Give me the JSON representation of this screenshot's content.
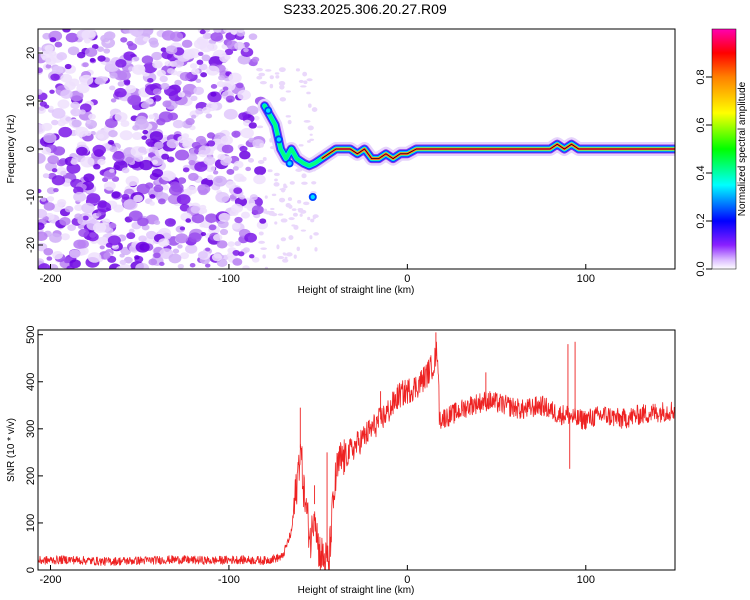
{
  "figure": {
    "title": "S233.2025.306.20.27.R09"
  },
  "chart_data": [
    {
      "type": "heatmap",
      "title": "S233.2025.306.20.27.R09",
      "xlabel": "Height of straight line (km)",
      "ylabel": "Frequency (Hz)",
      "xlim": [
        -207,
        150
      ],
      "ylim": [
        -25,
        25
      ],
      "x_ticks": [
        -200,
        -100,
        0,
        100
      ],
      "x_tick_labels": [
        "-200",
        "-100",
        "0",
        "100"
      ],
      "y_ticks": [
        -20,
        -10,
        0,
        10,
        20
      ],
      "y_tick_labels": [
        "-20",
        "-10",
        "0",
        "10",
        "20"
      ],
      "noise_region_x": [
        -207,
        -78
      ],
      "signal_trace": {
        "x": [
          -80,
          -77,
          -74,
          -71,
          -68,
          -65,
          -62,
          -58,
          -55,
          -52,
          -48,
          -44,
          -40,
          -36,
          -32,
          -28,
          -24,
          -20,
          -16,
          -12,
          -8,
          -4,
          0,
          5,
          10,
          15,
          20,
          25,
          30,
          40,
          50,
          60,
          70,
          80,
          84,
          88,
          92,
          96,
          100,
          110,
          120,
          130,
          140,
          150
        ],
        "y": [
          9,
          7,
          5,
          0,
          -2,
          0,
          -2,
          -3,
          -3.5,
          -3,
          -2,
          -1,
          0,
          0,
          0,
          -1,
          0,
          -2,
          -2,
          -1,
          -2,
          -1,
          -1,
          0,
          0,
          0,
          0,
          0,
          0,
          0,
          0,
          0,
          0,
          0,
          1,
          0,
          1,
          0,
          0,
          0,
          0,
          0,
          0,
          0
        ]
      },
      "colorbar": {
        "label": "Normalized spectral amplitude",
        "range": [
          0.0,
          1.0
        ],
        "ticks": [
          0.0,
          0.2,
          0.4,
          0.6,
          0.8
        ],
        "tick_labels": [
          "0.0",
          "0.2",
          "0.4",
          "0.6",
          "0.8"
        ],
        "colors": [
          "#ffffff",
          "#c8a0ff",
          "#7000ff",
          "#0000ff",
          "#00ffff",
          "#00ff00",
          "#ffff00",
          "#ff8000",
          "#ff0000",
          "#ff00a0"
        ]
      },
      "colors": {
        "noise_light": "#d8bbf5",
        "noise_dark": "#7b18e8",
        "ridge": "#ff3030",
        "ridge_edge": "#00ff80",
        "trace_line": "#000000"
      }
    },
    {
      "type": "line",
      "xlabel": "Height of straight line (km)",
      "ylabel": "SNR (10 * v/v)",
      "xlim": [
        -207,
        150
      ],
      "ylim": [
        0,
        510
      ],
      "x_ticks": [
        -200,
        -100,
        0,
        100
      ],
      "x_tick_labels": [
        "-200",
        "-100",
        "0",
        "100"
      ],
      "y_ticks": [
        0,
        100,
        200,
        300,
        400,
        500
      ],
      "y_tick_labels": [
        "0",
        "100",
        "200",
        "300",
        "400",
        "500"
      ],
      "line_color": "#ee2222",
      "series": [
        {
          "name": "SNR",
          "x": [
            -207,
            -190,
            -170,
            -150,
            -130,
            -110,
            -95,
            -80,
            -70,
            -65,
            -62,
            -60,
            -58,
            -56,
            -54,
            -52,
            -50,
            -48,
            -46,
            -44,
            -42,
            -40,
            -38,
            -35,
            -30,
            -25,
            -20,
            -15,
            -10,
            -5,
            0,
            5,
            10,
            15,
            17,
            18,
            25,
            35,
            45,
            55,
            65,
            75,
            85,
            90,
            95,
            100,
            110,
            120,
            130,
            140,
            150
          ],
          "y": [
            20,
            22,
            18,
            20,
            22,
            20,
            22,
            20,
            28,
            80,
            180,
            260,
            170,
            110,
            60,
            140,
            50,
            30,
            20,
            15,
            120,
            200,
            230,
            240,
            260,
            280,
            300,
            320,
            340,
            370,
            380,
            390,
            410,
            440,
            470,
            320,
            330,
            350,
            360,
            350,
            340,
            350,
            330,
            330,
            320,
            320,
            330,
            320,
            330,
            335,
            340
          ]
        }
      ],
      "spikes": [
        {
          "x": -60,
          "y": 345
        },
        {
          "x": -52,
          "y": 180
        },
        {
          "x": -45,
          "y": 250
        },
        {
          "x": -15,
          "y": 380
        },
        {
          "x": 16,
          "y": 505
        },
        {
          "x": 44,
          "y": 420
        },
        {
          "x": 90,
          "y": 480
        },
        {
          "x": 94,
          "y": 485
        },
        {
          "x": 91,
          "y": 215
        }
      ]
    }
  ]
}
